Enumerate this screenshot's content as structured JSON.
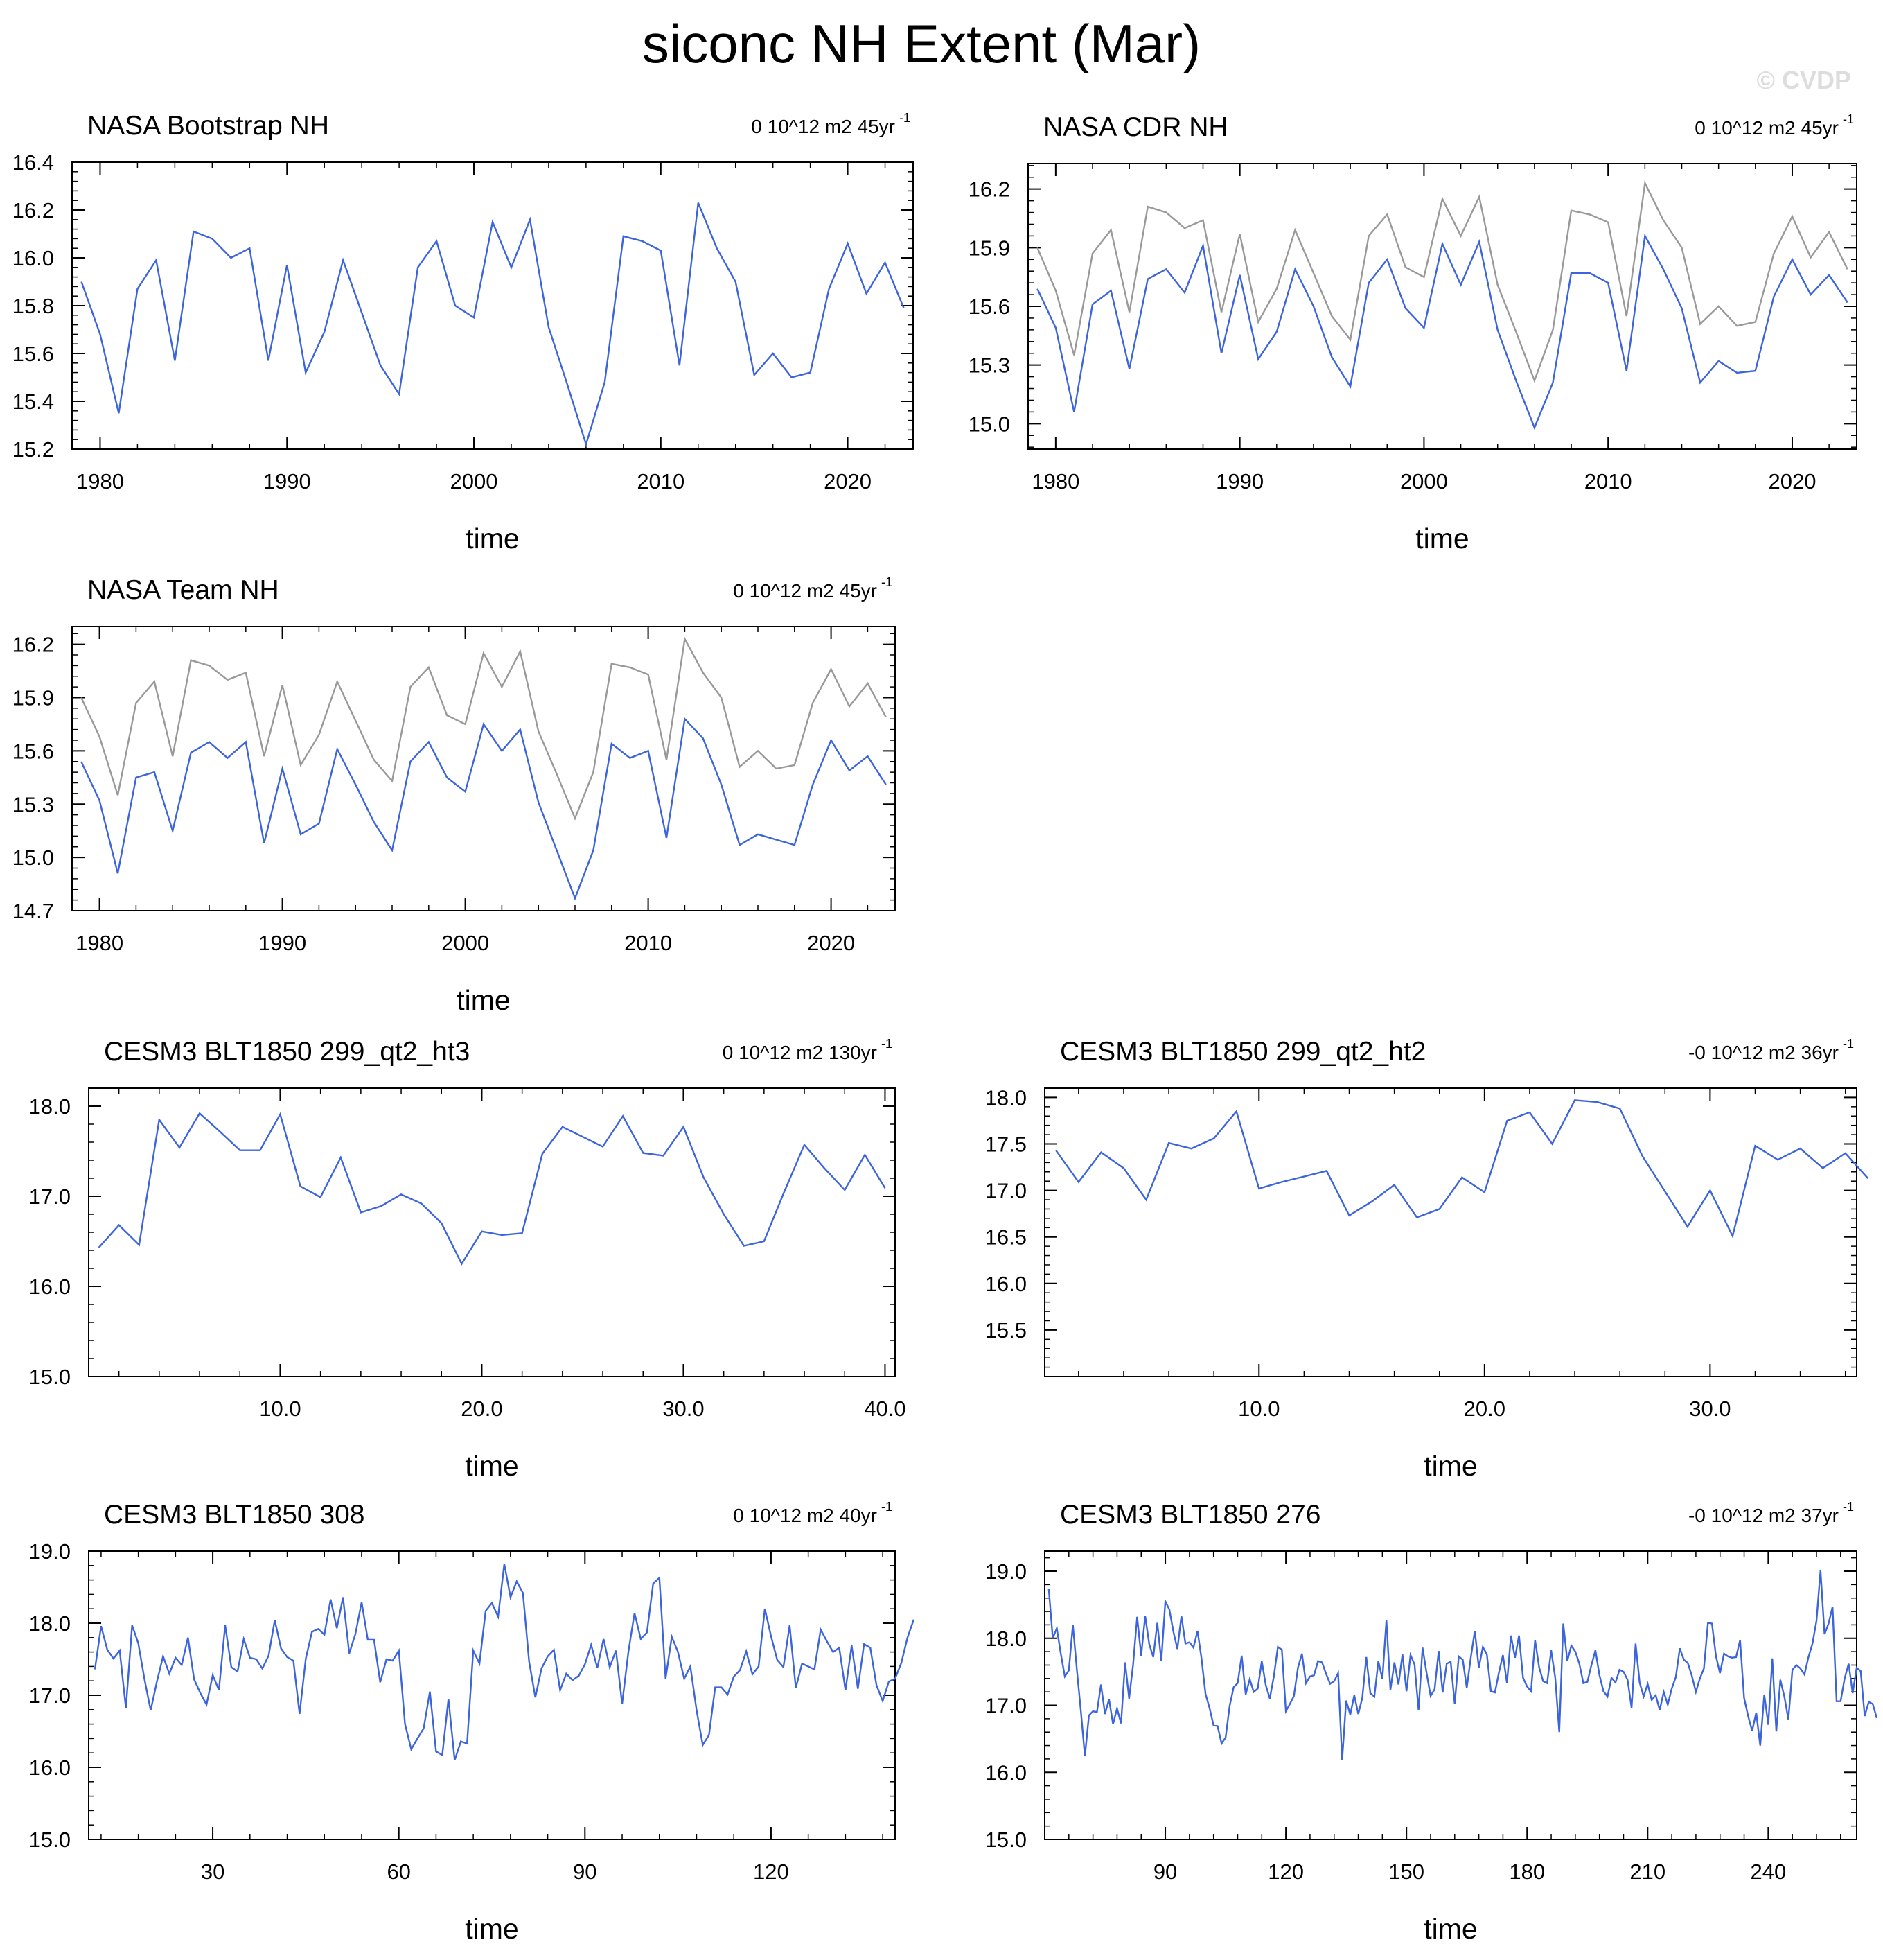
{
  "figure": {
    "title": "siconc NH Extent (Mar)",
    "watermark": "© CVDP",
    "line_color": "#3c64dc",
    "obs_color": "#999999"
  },
  "chart_data": [
    {
      "type": "line",
      "title": "NASA Bootstrap NH",
      "trend_label": "0 10^12 m2 45yr",
      "trend_superscript": "-1",
      "xlabel": "time",
      "xlim": [
        1978.5,
        2023.5
      ],
      "ylim": [
        15.2,
        16.4
      ],
      "yticks": [
        "15.2",
        "15.4",
        "15.6",
        "15.8",
        "16.0",
        "16.2",
        "16.4"
      ],
      "xticks": [
        "1980",
        "1990",
        "2000",
        "2010",
        "2020"
      ],
      "x_start": 1979,
      "series": [
        {
          "values": [
            15.9,
            15.68,
            15.35,
            15.87,
            15.99,
            15.57,
            16.11,
            16.08,
            16.0,
            16.04,
            15.57,
            15.97,
            15.52,
            15.69,
            15.99,
            15.77,
            15.55,
            15.43,
            15.96,
            16.07,
            15.8,
            15.75,
            16.15,
            15.96,
            16.16,
            15.71,
            15.47,
            15.22,
            15.48,
            16.09,
            16.07,
            16.03,
            15.55,
            16.23,
            16.04,
            15.9,
            15.51,
            15.6,
            15.5,
            15.52,
            15.87,
            16.06,
            15.85,
            15.98,
            15.79
          ]
        }
      ]
    },
    {
      "type": "line",
      "title": "NASA CDR NH",
      "trend_label": "0 10^12 m2 45yr",
      "trend_superscript": "-1",
      "xlabel": "time",
      "xlim": [
        1978.5,
        2023.5
      ],
      "ylim": [
        14.87,
        16.33
      ],
      "yticks": [
        "15.0",
        "15.3",
        "15.6",
        "15.9",
        "16.2"
      ],
      "xticks": [
        "1980",
        "1990",
        "2000",
        "2010",
        "2020"
      ],
      "x_start": 1979,
      "series": [
        {
          "values": [
            15.69,
            15.49,
            15.06,
            15.61,
            15.68,
            15.28,
            15.74,
            15.79,
            15.67,
            15.91,
            15.36,
            15.76,
            15.33,
            15.47,
            15.79,
            15.6,
            15.34,
            15.19,
            15.72,
            15.84,
            15.59,
            15.49,
            15.92,
            15.71,
            15.93,
            15.48,
            15.22,
            14.98,
            15.21,
            15.77,
            15.77,
            15.72,
            15.27,
            15.96,
            15.79,
            15.59,
            15.21,
            15.32,
            15.26,
            15.27,
            15.65,
            15.84,
            15.66,
            15.76,
            15.62
          ]
        },
        {
          "values": [
            15.9,
            15.68,
            15.35,
            15.87,
            15.99,
            15.57,
            16.11,
            16.08,
            16.0,
            16.04,
            15.57,
            15.97,
            15.52,
            15.69,
            15.99,
            15.77,
            15.55,
            15.43,
            15.96,
            16.07,
            15.8,
            15.75,
            16.15,
            15.96,
            16.16,
            15.71,
            15.47,
            15.22,
            15.48,
            16.09,
            16.07,
            16.03,
            15.55,
            16.23,
            16.04,
            15.9,
            15.51,
            15.6,
            15.5,
            15.52,
            15.87,
            16.06,
            15.85,
            15.98,
            15.79
          ]
        }
      ]
    },
    {
      "type": "line",
      "title": "NASA Team NH",
      "trend_label": "0 10^12 m2 45yr",
      "trend_superscript": "-1",
      "xlabel": "time",
      "xlim": [
        1978.5,
        2023.5
      ],
      "ylim": [
        14.7,
        16.3
      ],
      "yticks": [
        "14.7",
        "15.0",
        "15.3",
        "15.6",
        "15.9",
        "16.2"
      ],
      "xticks": [
        "1980",
        "1990",
        "2000",
        "2010",
        "2020"
      ],
      "x_start": 1979,
      "series": [
        {
          "values": [
            15.54,
            15.32,
            14.91,
            15.45,
            15.48,
            15.15,
            15.59,
            15.65,
            15.56,
            15.65,
            15.08,
            15.5,
            15.13,
            15.19,
            15.61,
            15.41,
            15.2,
            15.04,
            15.54,
            15.65,
            15.45,
            15.37,
            15.75,
            15.6,
            15.72,
            15.31,
            15.04,
            14.77,
            15.04,
            15.64,
            15.56,
            15.6,
            15.11,
            15.78,
            15.67,
            15.41,
            15.07,
            15.13,
            15.1,
            15.07,
            15.41,
            15.66,
            15.49,
            15.57,
            15.41
          ]
        },
        {
          "values": [
            15.9,
            15.68,
            15.35,
            15.87,
            15.99,
            15.57,
            16.11,
            16.08,
            16.0,
            16.04,
            15.57,
            15.97,
            15.52,
            15.69,
            15.99,
            15.77,
            15.55,
            15.43,
            15.96,
            16.07,
            15.8,
            15.75,
            16.15,
            15.96,
            16.16,
            15.71,
            15.47,
            15.22,
            15.48,
            16.09,
            16.07,
            16.03,
            15.55,
            16.23,
            16.04,
            15.9,
            15.51,
            15.6,
            15.5,
            15.52,
            15.87,
            16.06,
            15.85,
            15.98,
            15.79
          ]
        }
      ]
    },
    {
      "type": "line",
      "title": "CESM3 BLT1850 299_qt2_ht3",
      "trend_label": "0 10^12 m2 130yr",
      "trend_superscript": "-1",
      "xlabel": "time",
      "xlim": [
        0.5,
        40.5
      ],
      "ylim": [
        15.0,
        18.2
      ],
      "yticks": [
        "15.0",
        "16.0",
        "17.0",
        "18.0"
      ],
      "xticks": [
        "10.0",
        "20.0",
        "30.0",
        "40.0"
      ],
      "x_start": 1,
      "series": [
        {
          "values": [
            16.43,
            16.68,
            16.46,
            17.85,
            17.54,
            17.92,
            17.72,
            17.51,
            17.51,
            17.91,
            17.11,
            16.99,
            17.43,
            16.82,
            16.89,
            17.02,
            16.92,
            16.7,
            16.25,
            16.61,
            16.57,
            16.59,
            17.47,
            17.77,
            17.66,
            17.55,
            17.89,
            17.48,
            17.45,
            17.77,
            17.21,
            16.8,
            16.45,
            16.5,
            17.05,
            17.57,
            17.31,
            17.07,
            17.46,
            17.09
          ]
        }
      ]
    },
    {
      "type": "line",
      "title": "CESM3 BLT1850 299_qt2_ht2",
      "trend_label": "-0 10^12 m2 36yr",
      "trend_superscript": "-1",
      "xlabel": "time",
      "xlim": [
        0.5,
        36.5
      ],
      "ylim": [
        15.0,
        18.1
      ],
      "yticks": [
        "15.5",
        "16.0",
        "16.5",
        "17.0",
        "17.5",
        "18.0"
      ],
      "xticks": [
        "10.0",
        "20.0",
        "30.0"
      ],
      "x_start": 1,
      "series": [
        {
          "values": [
            17.43,
            17.09,
            17.41,
            17.24,
            16.9,
            17.51,
            17.45,
            17.56,
            17.85,
            17.02,
            17.09,
            17.15,
            17.21,
            16.73,
            16.88,
            17.06,
            16.71,
            16.8,
            17.14,
            16.98,
            17.75,
            17.84,
            17.5,
            17.97,
            17.95,
            17.88,
            17.37,
            16.99,
            16.61,
            17.0,
            16.51,
            17.48,
            17.33,
            17.45,
            17.24,
            17.4,
            17.13
          ]
        }
      ]
    },
    {
      "type": "line",
      "title": "CESM3 BLT1850 308",
      "trend_label": "0 10^12 m2 40yr",
      "trend_superscript": "-1",
      "xlabel": "time",
      "xlim": [
        10,
        140
      ],
      "ylim": [
        15.0,
        19.0
      ],
      "yticks": [
        "15.0",
        "16.0",
        "17.0",
        "18.0",
        "19.0"
      ],
      "xticks": [
        "30",
        "60",
        "90",
        "120"
      ],
      "x_start": 11,
      "series": [
        {
          "values": [
            17.36,
            17.96,
            17.63,
            17.51,
            17.62,
            16.82,
            17.97,
            17.72,
            17.22,
            16.79,
            17.19,
            17.54,
            17.3,
            17.52,
            17.42,
            17.8,
            17.22,
            17.03,
            16.87,
            17.28,
            17.07,
            17.97,
            17.39,
            17.33,
            17.78,
            17.52,
            17.5,
            17.37,
            17.55,
            18.04,
            17.65,
            17.53,
            17.48,
            16.74,
            17.51,
            17.88,
            17.92,
            17.84,
            18.33,
            17.93,
            18.36,
            17.58,
            17.85,
            18.29,
            17.77,
            17.77,
            17.18,
            17.5,
            17.48,
            17.62,
            16.6,
            16.25,
            16.4,
            16.54,
            17.05,
            16.22,
            16.17,
            16.95,
            16.1,
            16.36,
            16.33,
            17.62,
            17.44,
            18.17,
            18.28,
            18.09,
            18.82,
            18.36,
            18.58,
            18.42,
            17.47,
            16.97,
            17.37,
            17.54,
            17.63,
            17.07,
            17.3,
            17.21,
            17.27,
            17.43,
            17.7,
            17.38,
            17.78,
            17.39,
            17.62,
            16.88,
            17.6,
            18.14,
            17.78,
            17.87,
            18.55,
            18.63,
            17.23,
            17.81,
            17.6,
            17.23,
            17.4,
            16.79,
            16.31,
            16.45,
            17.11,
            17.11,
            17.01,
            17.26,
            17.35,
            17.61,
            17.29,
            17.4,
            18.2,
            17.82,
            17.49,
            17.39,
            17.97,
            17.1,
            17.44,
            17.4,
            17.36,
            17.91,
            17.75,
            17.6,
            17.66,
            17.07,
            17.69,
            17.09,
            17.71,
            17.66,
            17.14,
            16.92,
            17.19,
            17.23,
            17.45,
            17.8,
            18.05
          ]
        }
      ]
    },
    {
      "type": "line",
      "title": "CESM3 BLT1850 276",
      "trend_label": "-0 10^12 m2 37yr",
      "trend_superscript": "-1",
      "xlabel": "time",
      "xlim": [
        60,
        262
      ],
      "ylim": [
        15.0,
        19.3
      ],
      "yticks": [
        "15.0",
        "16.0",
        "17.0",
        "18.0",
        "19.0"
      ],
      "xticks": [
        "90",
        "120",
        "150",
        "180",
        "210",
        "240"
      ],
      "x_start": 61,
      "series": [
        {
          "values": [
            18.74,
            18.0,
            18.15,
            17.77,
            17.43,
            17.52,
            18.2,
            17.53,
            16.91,
            16.24,
            16.85,
            16.91,
            16.9,
            17.31,
            16.87,
            17.09,
            16.72,
            16.95,
            16.73,
            17.64,
            17.1,
            17.61,
            18.32,
            17.74,
            18.33,
            17.91,
            17.72,
            18.23,
            17.66,
            18.55,
            18.43,
            18.1,
            17.84,
            18.33,
            17.92,
            17.94,
            17.86,
            18.11,
            17.7,
            17.17,
            16.96,
            16.7,
            16.69,
            16.43,
            16.52,
            16.99,
            17.27,
            17.33,
            17.74,
            17.16,
            17.39,
            17.2,
            17.25,
            17.66,
            17.3,
            17.1,
            17.43,
            17.87,
            17.83,
            16.91,
            17.02,
            17.14,
            17.56,
            17.77,
            17.33,
            17.43,
            17.45,
            17.66,
            17.64,
            17.47,
            17.32,
            17.36,
            17.48,
            16.18,
            17.07,
            16.86,
            17.15,
            16.87,
            17.11,
            17.72,
            17.18,
            17.13,
            17.66,
            17.39,
            18.27,
            17.23,
            17.64,
            17.31,
            17.76,
            17.21,
            17.75,
            17.61,
            16.93,
            17.86,
            17.48,
            17.14,
            17.24,
            17.81,
            17.19,
            17.62,
            17.65,
            17.02,
            17.73,
            17.68,
            17.26,
            17.71,
            18.11,
            17.56,
            17.87,
            17.76,
            17.21,
            17.19,
            17.49,
            17.75,
            17.33,
            18.04,
            17.71,
            18.04,
            17.41,
            17.28,
            17.21,
            17.97,
            17.57,
            17.36,
            17.33,
            17.82,
            17.41,
            16.6,
            18.22,
            17.66,
            17.89,
            17.8,
            17.62,
            17.33,
            17.35,
            17.6,
            17.82,
            17.45,
            17.21,
            17.13,
            17.41,
            17.34,
            17.53,
            17.5,
            17.38,
            16.96,
            17.92,
            17.34,
            17.13,
            17.32,
            17.08,
            17.15,
            16.93,
            17.2,
            17.01,
            17.25,
            17.42,
            17.85,
            17.68,
            17.63,
            17.44,
            17.2,
            17.4,
            17.55,
            18.23,
            18.22,
            17.73,
            17.48,
            17.77,
            17.73,
            17.71,
            17.72,
            17.97,
            17.11,
            16.84,
            16.62,
            16.89,
            16.4,
            17.16,
            16.71,
            17.7,
            16.61,
            17.38,
            17.13,
            16.79,
            17.53,
            17.6,
            17.55,
            17.46,
            17.72,
            17.92,
            18.26,
            19.01,
            18.06,
            18.22,
            18.47,
            17.06,
            17.06,
            17.4,
            17.62,
            17.18,
            17.56,
            17.51,
            16.84,
            17.05,
            17.02,
            16.81
          ]
        }
      ]
    }
  ]
}
